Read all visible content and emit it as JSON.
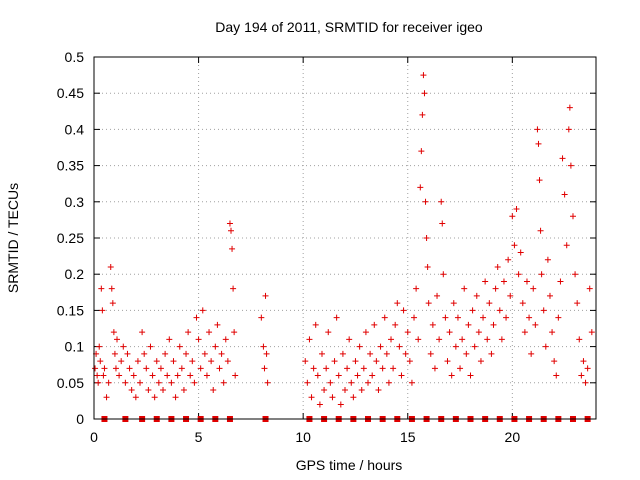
{
  "chart_data": {
    "type": "scatter",
    "title": "Day 194 of 2011, SRMTID for receiver igeo",
    "xlabel": "GPS time / hours",
    "ylabel": "SRMTID / TECUs",
    "xlim": [
      0,
      24
    ],
    "ylim": [
      0,
      0.5
    ],
    "x_ticks": [
      0,
      5,
      10,
      15,
      20
    ],
    "x_tick_labels": [
      "0",
      "5",
      "10",
      "15",
      "20"
    ],
    "y_ticks": [
      0,
      0.05,
      0.1,
      0.15,
      0.2,
      0.25,
      0.3,
      0.35,
      0.4,
      0.45,
      0.5
    ],
    "y_tick_labels": [
      "0",
      "0.05",
      "0.1",
      "0.15",
      "0.2",
      "0.25",
      "0.3",
      "0.35",
      "0.4",
      "0.45",
      "0.5"
    ],
    "grid": true,
    "marker": "plus",
    "color": "#e00000",
    "zero_markers_x": [
      0.5,
      1.5,
      2.3,
      3.0,
      3.7,
      4.4,
      5.1,
      5.8,
      6.5,
      8.2,
      10.3,
      11.0,
      11.7,
      12.4,
      13.1,
      13.8,
      14.5,
      15.2,
      15.9,
      16.6,
      17.3,
      18.0,
      18.7,
      19.4,
      20.1,
      20.8,
      21.5,
      22.2,
      22.9,
      23.6
    ],
    "series": [
      {
        "name": "SRMTID",
        "points": [
          [
            0.05,
            0.07
          ],
          [
            0.1,
            0.09
          ],
          [
            0.15,
            0.06
          ],
          [
            0.2,
            0.05
          ],
          [
            0.25,
            0.1
          ],
          [
            0.3,
            0.08
          ],
          [
            0.35,
            0.18
          ],
          [
            0.4,
            0.15
          ],
          [
            0.45,
            0.06
          ],
          [
            0.5,
            0.07
          ],
          [
            0.6,
            0.03
          ],
          [
            0.7,
            0.05
          ],
          [
            0.8,
            0.21
          ],
          [
            0.85,
            0.18
          ],
          [
            0.9,
            0.16
          ],
          [
            0.95,
            0.12
          ],
          [
            1.0,
            0.09
          ],
          [
            1.05,
            0.07
          ],
          [
            1.1,
            0.11
          ],
          [
            1.2,
            0.06
          ],
          [
            1.3,
            0.08
          ],
          [
            1.4,
            0.1
          ],
          [
            1.5,
            0.05
          ],
          [
            1.6,
            0.09
          ],
          [
            1.7,
            0.07
          ],
          [
            1.8,
            0.04
          ],
          [
            1.9,
            0.06
          ],
          [
            2.0,
            0.03
          ],
          [
            2.1,
            0.08
          ],
          [
            2.2,
            0.05
          ],
          [
            2.3,
            0.12
          ],
          [
            2.4,
            0.09
          ],
          [
            2.5,
            0.07
          ],
          [
            2.6,
            0.04
          ],
          [
            2.7,
            0.1
          ],
          [
            2.8,
            0.06
          ],
          [
            2.9,
            0.03
          ],
          [
            3.0,
            0.08
          ],
          [
            3.1,
            0.05
          ],
          [
            3.2,
            0.07
          ],
          [
            3.3,
            0.04
          ],
          [
            3.4,
            0.09
          ],
          [
            3.5,
            0.06
          ],
          [
            3.6,
            0.11
          ],
          [
            3.7,
            0.05
          ],
          [
            3.8,
            0.08
          ],
          [
            3.9,
            0.03
          ],
          [
            4.0,
            0.06
          ],
          [
            4.1,
            0.1
          ],
          [
            4.2,
            0.07
          ],
          [
            4.3,
            0.04
          ],
          [
            4.4,
            0.09
          ],
          [
            4.5,
            0.12
          ],
          [
            4.6,
            0.06
          ],
          [
            4.7,
            0.08
          ],
          [
            4.8,
            0.05
          ],
          [
            4.9,
            0.14
          ],
          [
            5.0,
            0.11
          ],
          [
            5.1,
            0.07
          ],
          [
            5.2,
            0.15
          ],
          [
            5.3,
            0.09
          ],
          [
            5.4,
            0.06
          ],
          [
            5.5,
            0.12
          ],
          [
            5.6,
            0.08
          ],
          [
            5.7,
            0.04
          ],
          [
            5.8,
            0.1
          ],
          [
            5.9,
            0.13
          ],
          [
            6.0,
            0.07
          ],
          [
            6.1,
            0.09
          ],
          [
            6.2,
            0.05
          ],
          [
            6.3,
            0.11
          ],
          [
            6.4,
            0.08
          ],
          [
            6.5,
            0.27
          ],
          [
            6.55,
            0.26
          ],
          [
            6.6,
            0.235
          ],
          [
            6.65,
            0.18
          ],
          [
            6.7,
            0.12
          ],
          [
            6.75,
            0.06
          ],
          [
            8.0,
            0.14
          ],
          [
            8.1,
            0.1
          ],
          [
            8.15,
            0.07
          ],
          [
            8.2,
            0.17
          ],
          [
            8.25,
            0.09
          ],
          [
            8.3,
            0.05
          ],
          [
            10.1,
            0.08
          ],
          [
            10.2,
            0.05
          ],
          [
            10.3,
            0.11
          ],
          [
            10.4,
            0.03
          ],
          [
            10.5,
            0.07
          ],
          [
            10.6,
            0.13
          ],
          [
            10.7,
            0.06
          ],
          [
            10.8,
            0.02
          ],
          [
            10.9,
            0.09
          ],
          [
            11.0,
            0.04
          ],
          [
            11.1,
            0.07
          ],
          [
            11.2,
            0.12
          ],
          [
            11.3,
            0.05
          ],
          [
            11.4,
            0.03
          ],
          [
            11.5,
            0.08
          ],
          [
            11.6,
            0.14
          ],
          [
            11.7,
            0.06
          ],
          [
            11.8,
            0.02
          ],
          [
            11.9,
            0.09
          ],
          [
            12.0,
            0.04
          ],
          [
            12.1,
            0.07
          ],
          [
            12.2,
            0.11
          ],
          [
            12.3,
            0.05
          ],
          [
            12.4,
            0.03
          ],
          [
            12.5,
            0.08
          ],
          [
            12.6,
            0.06
          ],
          [
            12.7,
            0.1
          ],
          [
            12.8,
            0.04
          ],
          [
            12.9,
            0.07
          ],
          [
            13.0,
            0.12
          ],
          [
            13.1,
            0.05
          ],
          [
            13.2,
            0.09
          ],
          [
            13.3,
            0.06
          ],
          [
            13.4,
            0.13
          ],
          [
            13.5,
            0.08
          ],
          [
            13.6,
            0.04
          ],
          [
            13.7,
            0.1
          ],
          [
            13.8,
            0.07
          ],
          [
            13.9,
            0.14
          ],
          [
            14.0,
            0.09
          ],
          [
            14.1,
            0.05
          ],
          [
            14.2,
            0.11
          ],
          [
            14.3,
            0.07
          ],
          [
            14.4,
            0.13
          ],
          [
            14.5,
            0.16
          ],
          [
            14.6,
            0.1
          ],
          [
            14.7,
            0.06
          ],
          [
            14.8,
            0.15
          ],
          [
            14.9,
            0.09
          ],
          [
            15.0,
            0.12
          ],
          [
            15.1,
            0.08
          ],
          [
            15.2,
            0.05
          ],
          [
            15.3,
            0.14
          ],
          [
            15.4,
            0.18
          ],
          [
            15.5,
            0.11
          ],
          [
            15.6,
            0.32
          ],
          [
            15.65,
            0.37
          ],
          [
            15.7,
            0.42
          ],
          [
            15.75,
            0.475
          ],
          [
            15.8,
            0.45
          ],
          [
            15.85,
            0.3
          ],
          [
            15.9,
            0.25
          ],
          [
            15.95,
            0.21
          ],
          [
            16.0,
            0.16
          ],
          [
            16.1,
            0.09
          ],
          [
            16.2,
            0.13
          ],
          [
            16.3,
            0.07
          ],
          [
            16.4,
            0.17
          ],
          [
            16.5,
            0.11
          ],
          [
            16.6,
            0.3
          ],
          [
            16.65,
            0.27
          ],
          [
            16.7,
            0.2
          ],
          [
            16.8,
            0.14
          ],
          [
            16.9,
            0.08
          ],
          [
            17.0,
            0.12
          ],
          [
            17.1,
            0.06
          ],
          [
            17.2,
            0.16
          ],
          [
            17.3,
            0.1
          ],
          [
            17.4,
            0.14
          ],
          [
            17.5,
            0.07
          ],
          [
            17.6,
            0.11
          ],
          [
            17.7,
            0.18
          ],
          [
            17.8,
            0.09
          ],
          [
            17.9,
            0.13
          ],
          [
            18.0,
            0.06
          ],
          [
            18.1,
            0.15
          ],
          [
            18.2,
            0.1
          ],
          [
            18.3,
            0.17
          ],
          [
            18.4,
            0.12
          ],
          [
            18.5,
            0.08
          ],
          [
            18.6,
            0.14
          ],
          [
            18.7,
            0.19
          ],
          [
            18.8,
            0.11
          ],
          [
            18.9,
            0.16
          ],
          [
            19.0,
            0.09
          ],
          [
            19.1,
            0.13
          ],
          [
            19.2,
            0.18
          ],
          [
            19.3,
            0.21
          ],
          [
            19.4,
            0.15
          ],
          [
            19.5,
            0.11
          ],
          [
            19.6,
            0.19
          ],
          [
            19.7,
            0.14
          ],
          [
            19.8,
            0.22
          ],
          [
            19.9,
            0.17
          ],
          [
            20.0,
            0.28
          ],
          [
            20.1,
            0.24
          ],
          [
            20.2,
            0.29
          ],
          [
            20.3,
            0.2
          ],
          [
            20.4,
            0.23
          ],
          [
            20.5,
            0.16
          ],
          [
            20.6,
            0.12
          ],
          [
            20.7,
            0.19
          ],
          [
            20.8,
            0.14
          ],
          [
            20.9,
            0.09
          ],
          [
            21.0,
            0.18
          ],
          [
            21.1,
            0.13
          ],
          [
            21.2,
            0.4
          ],
          [
            21.25,
            0.38
          ],
          [
            21.3,
            0.33
          ],
          [
            21.35,
            0.26
          ],
          [
            21.4,
            0.2
          ],
          [
            21.5,
            0.15
          ],
          [
            21.6,
            0.1
          ],
          [
            21.7,
            0.22
          ],
          [
            21.8,
            0.17
          ],
          [
            21.9,
            0.12
          ],
          [
            22.0,
            0.08
          ],
          [
            22.1,
            0.06
          ],
          [
            22.2,
            0.14
          ],
          [
            22.3,
            0.19
          ],
          [
            22.4,
            0.36
          ],
          [
            22.5,
            0.31
          ],
          [
            22.6,
            0.24
          ],
          [
            22.7,
            0.4
          ],
          [
            22.75,
            0.43
          ],
          [
            22.8,
            0.35
          ],
          [
            22.9,
            0.28
          ],
          [
            23.0,
            0.2
          ],
          [
            23.1,
            0.16
          ],
          [
            23.2,
            0.11
          ],
          [
            23.3,
            0.06
          ],
          [
            23.4,
            0.08
          ],
          [
            23.5,
            0.05
          ],
          [
            23.6,
            0.07
          ],
          [
            23.7,
            0.18
          ],
          [
            23.8,
            0.12
          ]
        ]
      }
    ]
  }
}
